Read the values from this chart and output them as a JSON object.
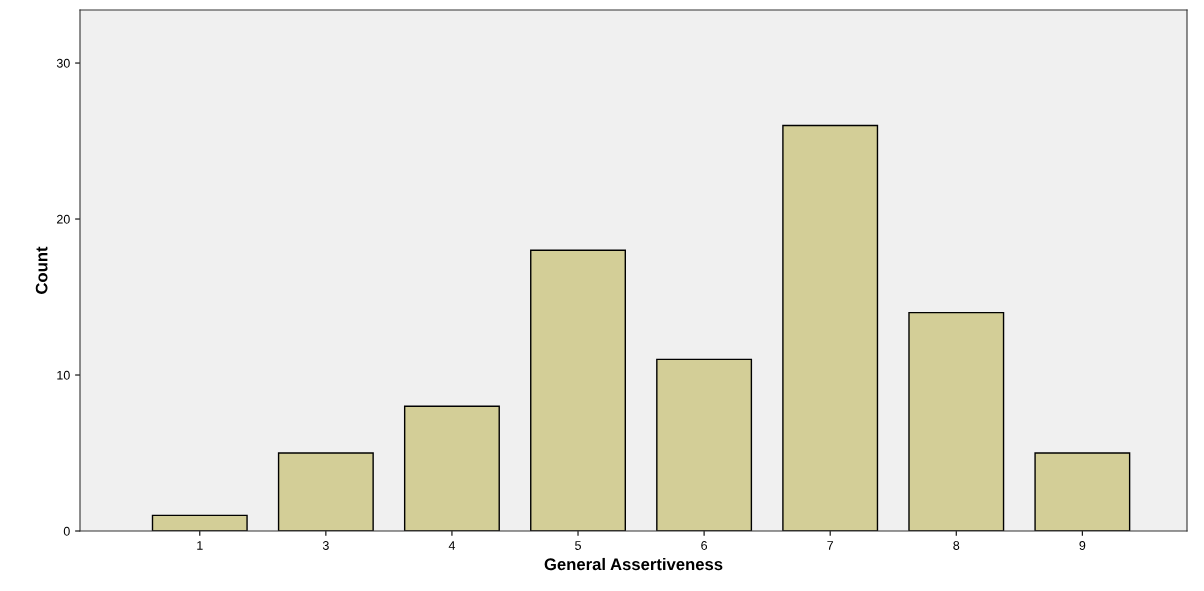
{
  "chart_data": {
    "type": "bar",
    "xlabel": "General Assertiveness",
    "ylabel": "Count",
    "categories": [
      "1",
      "3",
      "4",
      "5",
      "6",
      "7",
      "8",
      "9"
    ],
    "values": [
      1,
      5,
      8,
      18,
      11,
      26,
      14,
      5
    ],
    "color": "#d3ce97",
    "ylim": [
      0,
      33.4
    ],
    "yticks": [
      0,
      10,
      20,
      30
    ],
    "grid": false
  }
}
